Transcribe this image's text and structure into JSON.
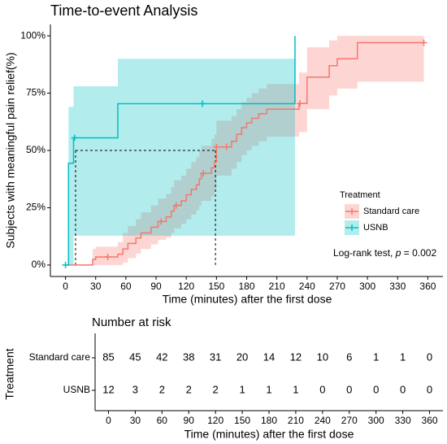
{
  "chart_data": {
    "type": "survival",
    "title": "Time-to-event Analysis",
    "x_label": "Time (minutes) after the first dose",
    "y_label": "Subjects with meaningful pain relief(%)",
    "xlim": [
      -15,
      375
    ],
    "ylim": [
      -5,
      105
    ],
    "xticks": [
      0,
      30,
      60,
      90,
      120,
      150,
      180,
      210,
      240,
      270,
      300,
      330,
      360
    ],
    "yticks": [
      {
        "value": 0,
        "label": "0%"
      },
      {
        "value": 25,
        "label": "25%"
      },
      {
        "value": 50,
        "label": "50%"
      },
      {
        "value": 75,
        "label": "75%"
      },
      {
        "value": 100,
        "label": "100%"
      }
    ],
    "legend_title": "Treatment",
    "annotation": [
      "Log-rank test, ",
      "p",
      " = 0.002"
    ],
    "median": {
      "y": 50,
      "x": [
        10,
        149
      ]
    },
    "series": [
      {
        "name": "Standard care",
        "color": "#F8766D",
        "x": [
          0,
          27,
          30,
          52,
          57,
          62,
          70,
          75,
          85,
          92,
          100,
          105,
          108,
          115,
          120,
          125,
          130,
          133,
          135,
          145,
          148,
          150,
          165,
          170,
          175,
          180,
          185,
          192,
          200,
          232,
          240,
          262,
          270,
          290,
          356
        ],
        "values": [
          0,
          2.4,
          3.5,
          4.7,
          7,
          9.4,
          11.8,
          14,
          16.5,
          19,
          21,
          23.5,
          26,
          28,
          30.6,
          33,
          35,
          37.6,
          40,
          42.4,
          45,
          51.5,
          54,
          57,
          60,
          62,
          64,
          66,
          68,
          70.5,
          82,
          87,
          90,
          97,
          97
        ],
        "lower": [
          0,
          0,
          0,
          0,
          1,
          3,
          5,
          7,
          9,
          11,
          12,
          14,
          16,
          18,
          20,
          22,
          24,
          26,
          28,
          30,
          33,
          39,
          42,
          45,
          48,
          50,
          52,
          54,
          56,
          58,
          68,
          74,
          77,
          80,
          null
        ],
        "upper": [
          0,
          7,
          8,
          10,
          14,
          17,
          20,
          23,
          26,
          29,
          31,
          34,
          37,
          39,
          42,
          45,
          47,
          50,
          52,
          55,
          57,
          63,
          65,
          68,
          71,
          73,
          75,
          77,
          79,
          84,
          95,
          98,
          100,
          100,
          null
        ],
        "censor_x": [
          42,
          95,
          110,
          137,
          150,
          160,
          233,
          356
        ],
        "censor_y": [
          3.5,
          19,
          26,
          40,
          51.5,
          51.5,
          70.5,
          97
        ]
      },
      {
        "name": "USNB",
        "color": "#00BFC4",
        "x": [
          0,
          3,
          8,
          52,
          228
        ],
        "values": [
          0,
          44.4,
          55.5,
          70.4,
          100
        ],
        "lower": [
          0,
          0,
          12.8,
          12.8,
          null
        ],
        "upper": [
          0,
          69,
          78,
          90,
          null
        ],
        "censor_x": [
          0,
          9,
          136
        ],
        "censor_y": [
          0,
          55.5,
          70.4
        ]
      }
    ],
    "risk_table": {
      "title": "Number at risk",
      "y_label": "Treatment",
      "x_label": "Time (minutes) after the first dose",
      "xlim": [
        -15,
        375
      ],
      "times": [
        0,
        30,
        60,
        90,
        120,
        150,
        180,
        210,
        240,
        270,
        300,
        330,
        360
      ],
      "rows": [
        {
          "name": "Standard care",
          "color": "#F8766D",
          "values": [
            85,
            45,
            42,
            38,
            31,
            20,
            14,
            12,
            10,
            6,
            1,
            1,
            0
          ]
        },
        {
          "name": "USNB",
          "color": "#00BFC4",
          "values": [
            12,
            3,
            2,
            2,
            2,
            1,
            1,
            1,
            0,
            0,
            0,
            0,
            0
          ]
        }
      ]
    }
  }
}
